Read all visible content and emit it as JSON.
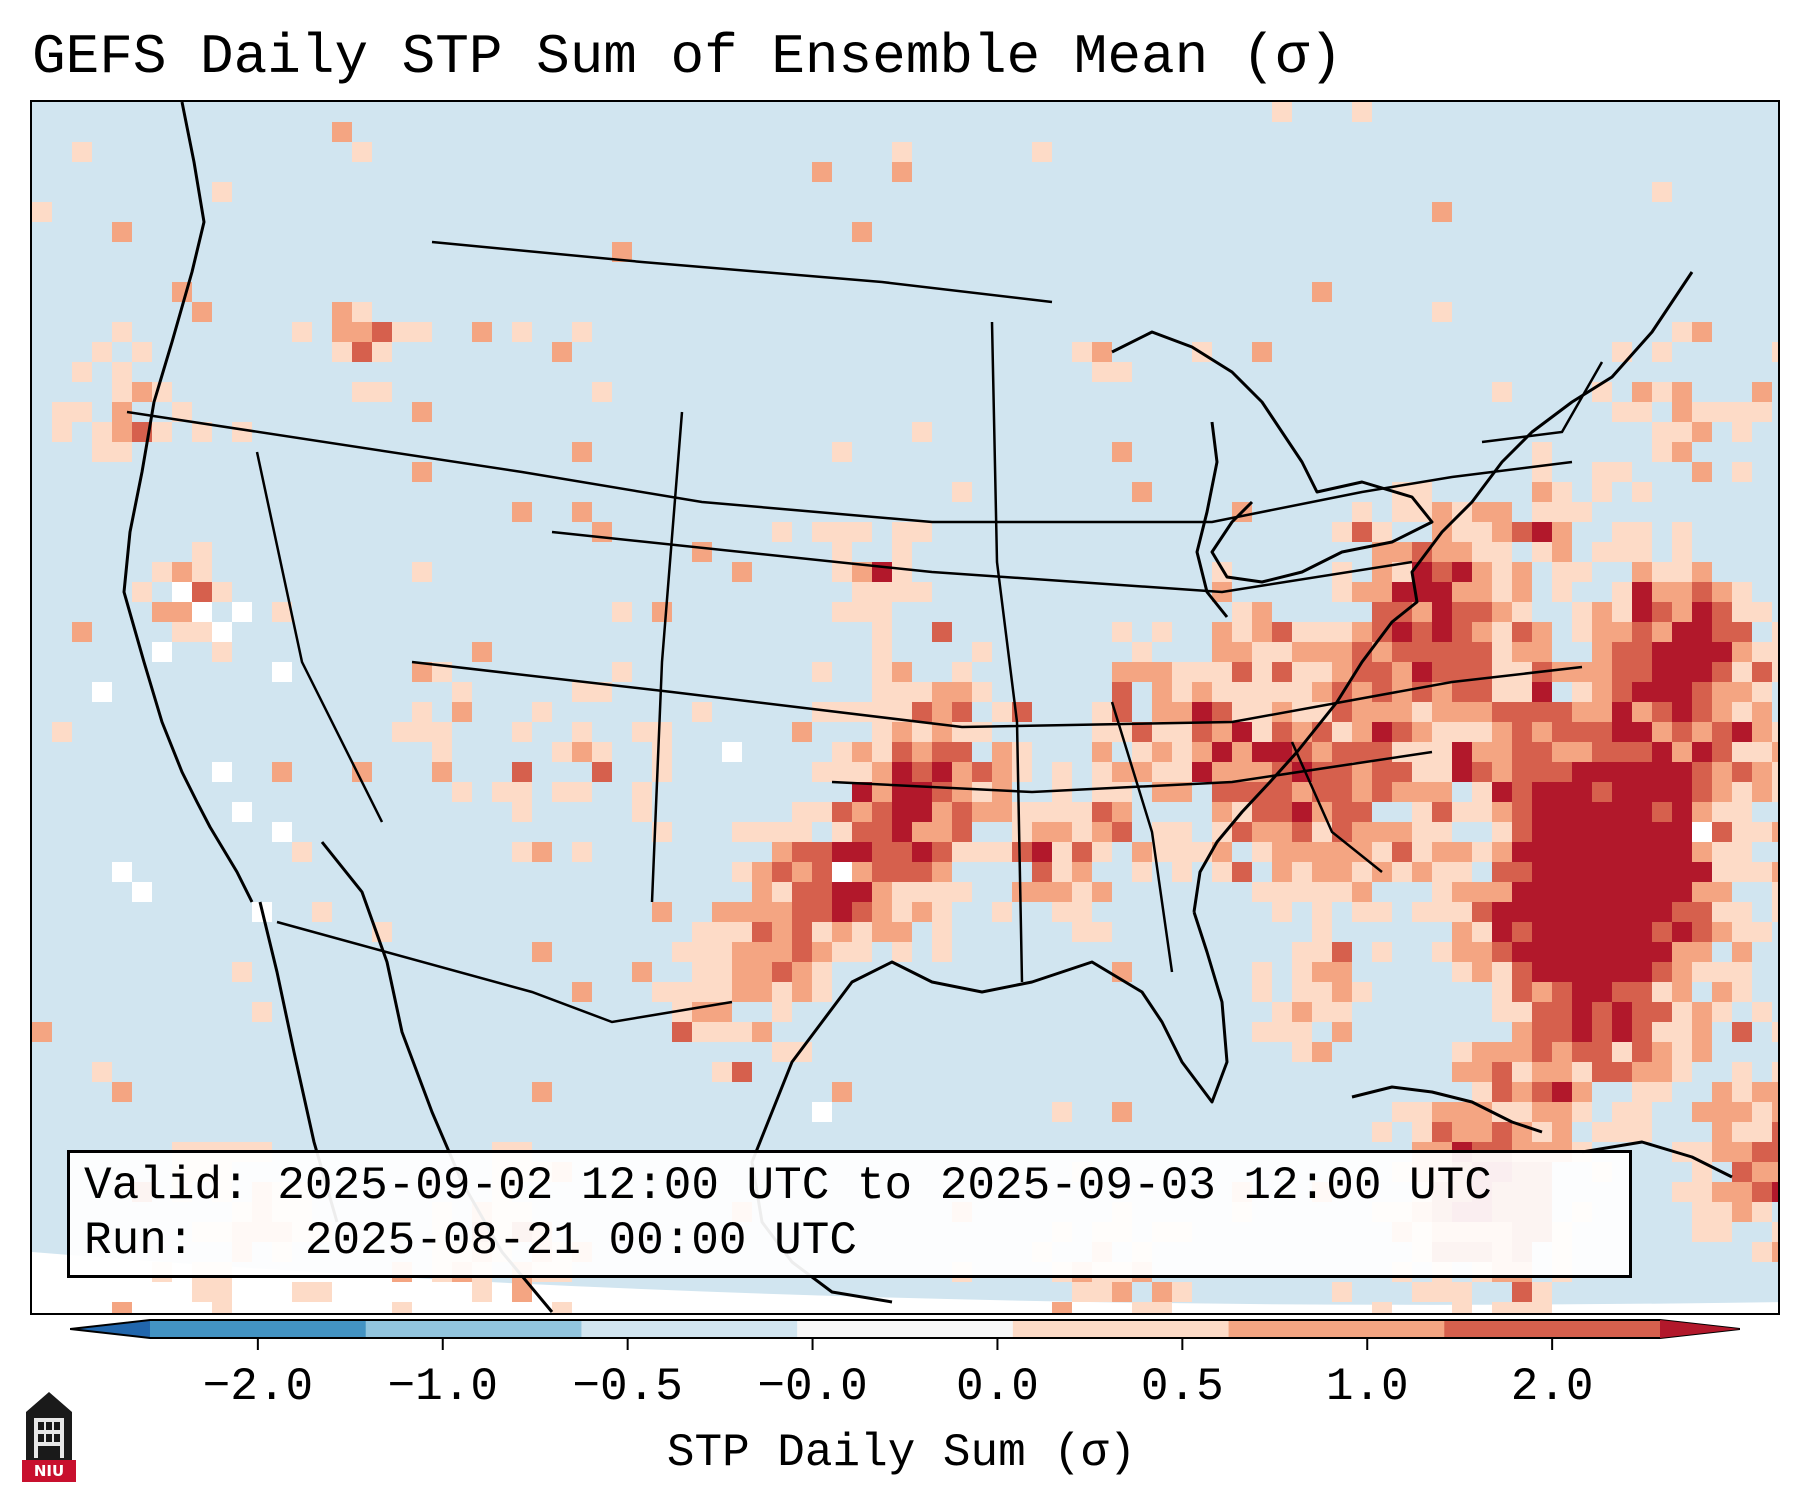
{
  "title": "GEFS Daily STP Sum of Ensemble Mean (σ)",
  "info": {
    "valid_label": "Valid:",
    "valid_value": "2025-09-02 12:00 UTC to 2025-09-03 12:00 UTC",
    "run_label": "Run:",
    "run_value": "2025-08-21 00:00 UTC"
  },
  "colorbar": {
    "label": "STP Daily Sum (σ)",
    "ticks": [
      "−2.0",
      "−1.0",
      "−0.5",
      "−0.0",
      "0.0",
      "0.5",
      "1.0",
      "2.0"
    ],
    "colors": [
      "#2166ac",
      "#4393c3",
      "#92c5de",
      "#d1e5f0",
      "#f7f7f7",
      "#fddbc7",
      "#f4a582",
      "#d6604d",
      "#b2182b"
    ]
  },
  "logo": {
    "text": "NIU",
    "icon": "university-tower-icon"
  }
}
